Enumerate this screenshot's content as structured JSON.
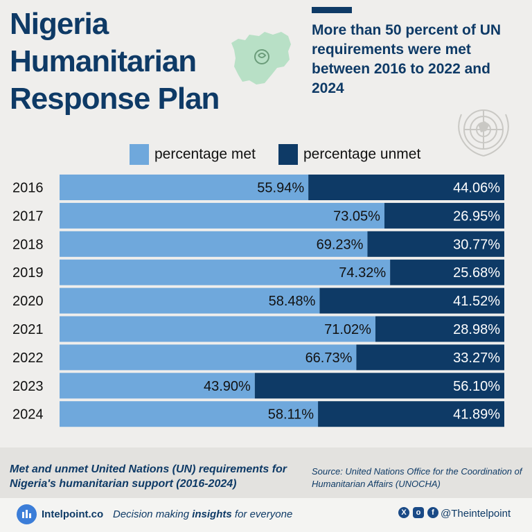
{
  "header": {
    "title": "Nigeria Humanitarian Response Plan",
    "subtitle": "More than 50 percent of UN requirements were met between 2016 to 2022 and 2024"
  },
  "colors": {
    "met": "#6fa8dc",
    "unmet": "#0e3a66",
    "title": "#0e3a66",
    "background": "#efeeec"
  },
  "icons": {
    "map": "nigeria-map-icon",
    "emblem": "un-emblem-icon"
  },
  "chart_data": {
    "type": "bar",
    "orientation": "horizontal",
    "stacked": true,
    "categories": [
      "2016",
      "2017",
      "2018",
      "2019",
      "2020",
      "2021",
      "2022",
      "2023",
      "2024"
    ],
    "series": [
      {
        "name": "percentage met",
        "values": [
          55.94,
          73.05,
          69.23,
          74.32,
          58.48,
          71.02,
          66.73,
          43.9,
          58.11
        ],
        "labels": [
          "55.94%",
          "73.05%",
          "69.23%",
          "74.32%",
          "58.48%",
          "71.02%",
          "66.73%",
          "43.90%",
          "58.11%"
        ]
      },
      {
        "name": "percentage unmet",
        "values": [
          44.06,
          26.95,
          30.77,
          25.68,
          41.52,
          28.98,
          33.27,
          56.1,
          41.89
        ],
        "labels": [
          "44.06%",
          "26.95%",
          "30.77%",
          "25.68%",
          "41.52%",
          "28.98%",
          "33.27%",
          "56.10%",
          "41.89%"
        ]
      }
    ],
    "xlim": [
      0,
      100
    ],
    "legend_position": "top",
    "grid": false
  },
  "caption": "Met and unmet United Nations (UN) requirements for Nigeria's humanitarian support (2016-2024)",
  "source": "Source: United Nations Office for the Coordination of Humanitarian Affairs (UNOCHA)",
  "footer": {
    "brand": "Intelpoint.co",
    "tagline_pre": "Decision making ",
    "tagline_bold": "insights",
    "tagline_post": " for everyone",
    "handle": "@Theintelpoint",
    "social_icons": [
      "x-icon",
      "instagram-icon",
      "facebook-icon"
    ]
  }
}
